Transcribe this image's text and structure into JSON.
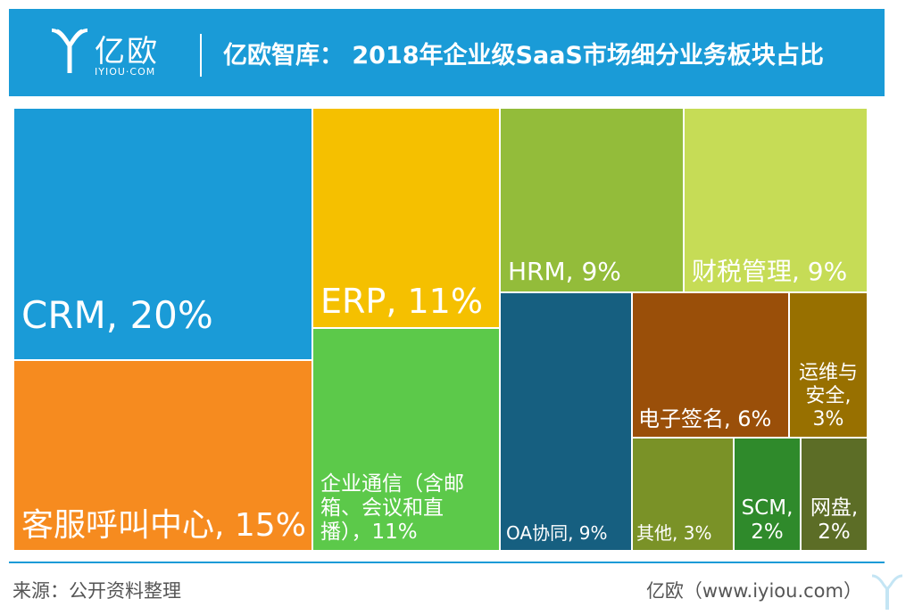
{
  "header": {
    "logo_text": "亿欧",
    "logo_sub": "IYIOU·COM",
    "title": "亿欧智库： 2018年企业级SaaS市场细分业务板块占比"
  },
  "footer": {
    "source": "来源：公开资料整理",
    "credit": "亿欧（www.iyiou.com）"
  },
  "chart_data": {
    "type": "treemap",
    "title": "亿欧智库： 2018年企业级SaaS市场细分业务板块占比",
    "unit": "%",
    "items": [
      {
        "label": "CRM, 20%",
        "name": "CRM",
        "value": 20,
        "color": "#1a9bd7"
      },
      {
        "label": "客服呼叫中心, 15%",
        "name": "客服呼叫中心",
        "value": 15,
        "color": "#f68b1f"
      },
      {
        "label": "ERP, 11%",
        "name": "ERP",
        "value": 11,
        "color": "#f5c000"
      },
      {
        "label": "企业通信（含邮\n箱、会议和直\n播），11%",
        "name": "企业通信（含邮箱、会议和直播）",
        "value": 11,
        "color": "#5cc94a"
      },
      {
        "label": "HRM, 9%",
        "name": "HRM",
        "value": 9,
        "color": "#93bc3a"
      },
      {
        "label": "财税管理, 9%",
        "name": "财税管理",
        "value": 9,
        "color": "#c6dc56"
      },
      {
        "label": "OA协同, 9%",
        "name": "OA协同",
        "value": 9,
        "color": "#165f80"
      },
      {
        "label": "电子签名, 6%",
        "name": "电子签名",
        "value": 6,
        "color": "#9a4f09"
      },
      {
        "label": "运维与\n安全,\n3%",
        "name": "运维与安全",
        "value": 3,
        "color": "#987000"
      },
      {
        "label": "其他, 3%",
        "name": "其他",
        "value": 3,
        "color": "#7a9227"
      },
      {
        "label": "SCM,\n2%",
        "name": "SCM",
        "value": 2,
        "color": "#2f8a2b"
      },
      {
        "label": "网盘,\n2%",
        "name": "网盘",
        "value": 2,
        "color": "#5c6d26"
      }
    ]
  }
}
